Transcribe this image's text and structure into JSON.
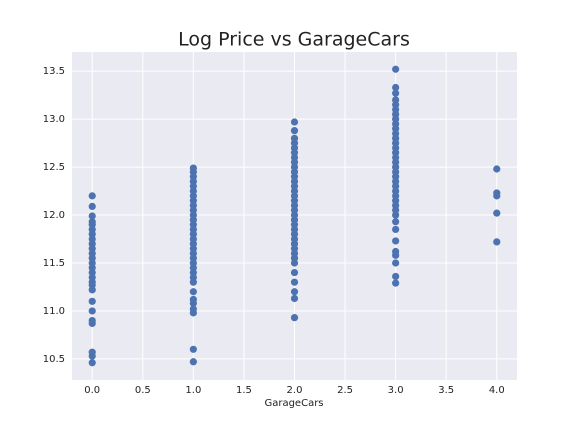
{
  "chart_data": {
    "type": "scatter",
    "title": "Log Price vs GarageCars",
    "x_label": "GarageCars",
    "color": "#4c72b0",
    "x": [
      0,
      0,
      0,
      0,
      0,
      0,
      0,
      0,
      0,
      0,
      0,
      0,
      0,
      0,
      0,
      0,
      0,
      0,
      0,
      0,
      0,
      0,
      0,
      0,
      0,
      0,
      1,
      1,
      1,
      1,
      1,
      1,
      1,
      1,
      1,
      1,
      1,
      1,
      1,
      1,
      1,
      1,
      1,
      1,
      1,
      1,
      1,
      1,
      1,
      1,
      1,
      1,
      1,
      1,
      1,
      1,
      1,
      1,
      2,
      2,
      2,
      2,
      2,
      2,
      2,
      2,
      2,
      2,
      2,
      2,
      2,
      2,
      2,
      2,
      2,
      2,
      2,
      2,
      2,
      2,
      2,
      2,
      2,
      2,
      2,
      2,
      2,
      2,
      2,
      2,
      2,
      2,
      3,
      3,
      3,
      3,
      3,
      3,
      3,
      3,
      3,
      3,
      3,
      3,
      3,
      3,
      3,
      3,
      3,
      3,
      3,
      3,
      3,
      3,
      3,
      3,
      3,
      3,
      3,
      3,
      3,
      3,
      3,
      3,
      3,
      3,
      3,
      3,
      4,
      4,
      4,
      4,
      4
    ],
    "values": [
      10.46,
      10.53,
      10.57,
      10.87,
      10.9,
      11.0,
      11.1,
      11.22,
      11.27,
      11.3,
      11.35,
      11.4,
      11.45,
      11.5,
      11.55,
      11.6,
      11.65,
      11.7,
      11.75,
      11.8,
      11.85,
      11.9,
      11.93,
      11.99,
      12.09,
      12.2,
      10.47,
      10.6,
      10.98,
      11.02,
      11.08,
      11.12,
      11.2,
      11.3,
      11.35,
      11.4,
      11.45,
      11.5,
      11.55,
      11.6,
      11.65,
      11.7,
      11.75,
      11.8,
      11.85,
      11.9,
      11.95,
      12.0,
      12.05,
      12.1,
      12.15,
      12.2,
      12.25,
      12.3,
      12.35,
      12.4,
      12.45,
      12.49,
      10.93,
      11.13,
      11.2,
      11.3,
      11.4,
      11.5,
      11.55,
      11.6,
      11.65,
      11.7,
      11.75,
      11.8,
      11.85,
      11.9,
      11.95,
      12.0,
      12.05,
      12.1,
      12.15,
      12.2,
      12.25,
      12.3,
      12.35,
      12.4,
      12.45,
      12.5,
      12.55,
      12.6,
      12.65,
      12.7,
      12.75,
      12.8,
      12.88,
      12.97,
      11.29,
      11.36,
      11.5,
      11.58,
      11.62,
      11.73,
      11.85,
      11.93,
      12.0,
      12.05,
      12.1,
      12.15,
      12.2,
      12.25,
      12.3,
      12.35,
      12.4,
      12.45,
      12.5,
      12.55,
      12.6,
      12.65,
      12.7,
      12.75,
      12.8,
      12.85,
      12.9,
      12.95,
      13.0,
      13.05,
      13.1,
      13.15,
      13.2,
      13.27,
      13.33,
      13.52,
      11.72,
      12.02,
      12.2,
      12.23,
      12.48
    ],
    "xlim": [
      -0.2,
      4.2
    ],
    "xticks": [
      {
        "value": 0,
        "label": "0.0"
      },
      0.5,
      {
        "value": 1,
        "label": "1.0"
      },
      1.5,
      {
        "value": 2,
        "label": "2.0"
      },
      2.5,
      {
        "value": 3,
        "label": "3.0"
      },
      3.5,
      {
        "value": 4,
        "label": "4.0"
      }
    ],
    "ylim": [
      10.28,
      13.7
    ],
    "yticks": [
      10.5,
      {
        "value": 11,
        "label": "11.0"
      },
      11.5,
      {
        "value": 12,
        "label": "12.0"
      },
      12.5,
      {
        "value": 13,
        "label": "13.0"
      },
      13.5
    ],
    "grid": true
  }
}
